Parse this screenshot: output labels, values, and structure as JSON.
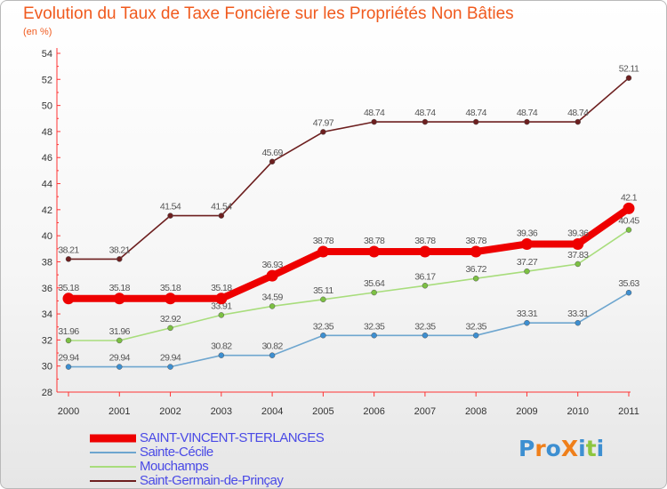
{
  "title": "Evolution du Taux de Taxe Foncière sur les Propriétés Non Bâties",
  "subtitle": "(en %)",
  "logo": {
    "text": "ProXiti",
    "letters": [
      {
        "ch": "P",
        "color": "#3d8fd1"
      },
      {
        "ch": "r",
        "color": "#ef7f1a"
      },
      {
        "ch": "o",
        "color": "#3d8fd1"
      },
      {
        "ch": "X",
        "color": "#ef7f1a"
      },
      {
        "ch": "i",
        "color": "#3d8fd1"
      },
      {
        "ch": "t",
        "color": "#8dc63f"
      },
      {
        "ch": "i",
        "color": "#3d8fd1"
      }
    ]
  },
  "chart_data": {
    "type": "line",
    "title": "Evolution du Taux de Taxe Foncière sur les Propriétés Non Bâties",
    "ylabel": "(en %)",
    "xlabel": "",
    "x": [
      "2000",
      "2001",
      "2002",
      "2003",
      "2004",
      "2005",
      "2006",
      "2007",
      "2008",
      "2009",
      "2010",
      "2011"
    ],
    "ylim": [
      28,
      54
    ],
    "yticks": [
      28,
      30,
      32,
      34,
      36,
      38,
      40,
      42,
      44,
      46,
      48,
      50,
      52,
      54
    ],
    "grid": false,
    "legend": "bottom-left",
    "series": [
      {
        "name": "Saint-Germain-de-Prinçay",
        "color": "#6d1f1f",
        "marker": "#6d1f1f",
        "emphasis": false,
        "values": [
          38.21,
          38.21,
          41.54,
          41.54,
          45.69,
          47.97,
          48.74,
          48.74,
          48.74,
          48.74,
          48.74,
          52.11
        ],
        "labels": [
          "38.21",
          "38.21",
          "41.54",
          "41.54",
          "45.69",
          "47.97",
          "48.74",
          "48.74",
          "48.74",
          "48.74",
          "48.74",
          "52.11"
        ]
      },
      {
        "name": "Mouchamps",
        "color": "#a8dd7c",
        "marker": "#7cc043",
        "emphasis": false,
        "values": [
          31.96,
          31.96,
          32.92,
          33.91,
          34.59,
          35.11,
          35.64,
          36.17,
          36.72,
          37.27,
          37.83,
          40.45
        ],
        "labels": [
          "31.96",
          "31.96",
          "32.92",
          "33.91",
          "34.59",
          "35.11",
          "35.64",
          "36.17",
          "36.72",
          "37.27",
          "37.83",
          "40.45"
        ]
      },
      {
        "name": "Sainte-Cécile",
        "color": "#6ea6cf",
        "marker": "#3d8fd1",
        "emphasis": false,
        "values": [
          29.94,
          29.94,
          29.94,
          30.82,
          30.82,
          32.35,
          32.35,
          32.35,
          32.35,
          33.31,
          33.31,
          35.63
        ],
        "labels": [
          "29.94",
          "29.94",
          "29.94",
          "30.82",
          "30.82",
          "32.35",
          "32.35",
          "32.35",
          "32.35",
          "33.31",
          "33.31",
          "35.63"
        ]
      },
      {
        "name": "SAINT-VINCENT-STERLANGES",
        "color": "#ee0000",
        "marker": "#ee0000",
        "emphasis": true,
        "values": [
          35.18,
          35.18,
          35.18,
          35.18,
          36.93,
          38.78,
          38.78,
          38.78,
          38.78,
          39.36,
          39.36,
          42.1
        ],
        "labels": [
          "35.18",
          "35.18",
          "35.18",
          "35.18",
          "36.93",
          "38.78",
          "38.78",
          "38.78",
          "38.78",
          "39.36",
          "39.36",
          "42.1"
        ]
      }
    ]
  },
  "legend": {
    "items": [
      {
        "label": "SAINT-VINCENT-STERLANGES",
        "color": "#ee0000",
        "thick": true
      },
      {
        "label": "Sainte-Cécile",
        "color": "#6ea6cf",
        "thick": false
      },
      {
        "label": "Mouchamps",
        "color": "#a8dd7c",
        "thick": false
      },
      {
        "label": "Saint-Germain-de-Prinçay",
        "color": "#6d1f1f",
        "thick": false
      }
    ]
  }
}
